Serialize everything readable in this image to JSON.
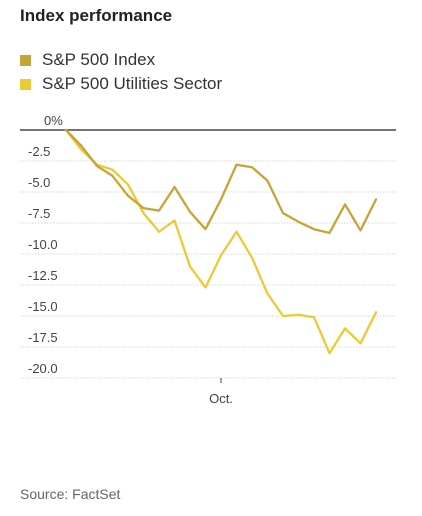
{
  "title": "Index performance",
  "legend": [
    {
      "label": "S&P 500 Index",
      "color": "#c4a535"
    },
    {
      "label": "S&P 500 Utilities Sector",
      "color": "#ecc936"
    }
  ],
  "source": "Source: FactSet",
  "chart_data": {
    "type": "line",
    "title": "Index performance",
    "xlabel": "",
    "ylabel": "",
    "x_tick_labels": [
      {
        "label": "Oct.",
        "index": 10
      }
    ],
    "y_ticks": [
      0,
      -2.5,
      -5.0,
      -7.5,
      -10.0,
      -12.5,
      -15.0,
      -17.5,
      -20.0
    ],
    "y_tick_labels": [
      "0%",
      "-2.5",
      "-5.0",
      "-7.5",
      "-10.0",
      "-12.5",
      "-15.0",
      "-17.5",
      "-20.0"
    ],
    "ylim": [
      -20.5,
      0
    ],
    "grid": true,
    "legend_position": "top-left",
    "series": [
      {
        "name": "S&P 500 Index",
        "color": "#c4a535",
        "values": [
          0,
          -1.3,
          -2.9,
          -3.7,
          -5.3,
          -6.3,
          -6.5,
          -4.6,
          -6.6,
          -8.0,
          -5.6,
          -2.8,
          -3.0,
          -4.1,
          -6.7,
          -7.4,
          -8.0,
          -8.3,
          -6.0,
          -8.1,
          -5.6
        ]
      },
      {
        "name": "S&P 500 Utilities Sector",
        "color": "#ecc936",
        "values": [
          0,
          -1.6,
          -2.8,
          -3.2,
          -4.4,
          -6.7,
          -8.2,
          -7.3,
          -11.0,
          -12.7,
          -10.1,
          -8.2,
          -10.3,
          -13.2,
          -15.0,
          -14.9,
          -15.1,
          -18.0,
          -16.0,
          -17.2,
          -14.7
        ]
      }
    ]
  }
}
